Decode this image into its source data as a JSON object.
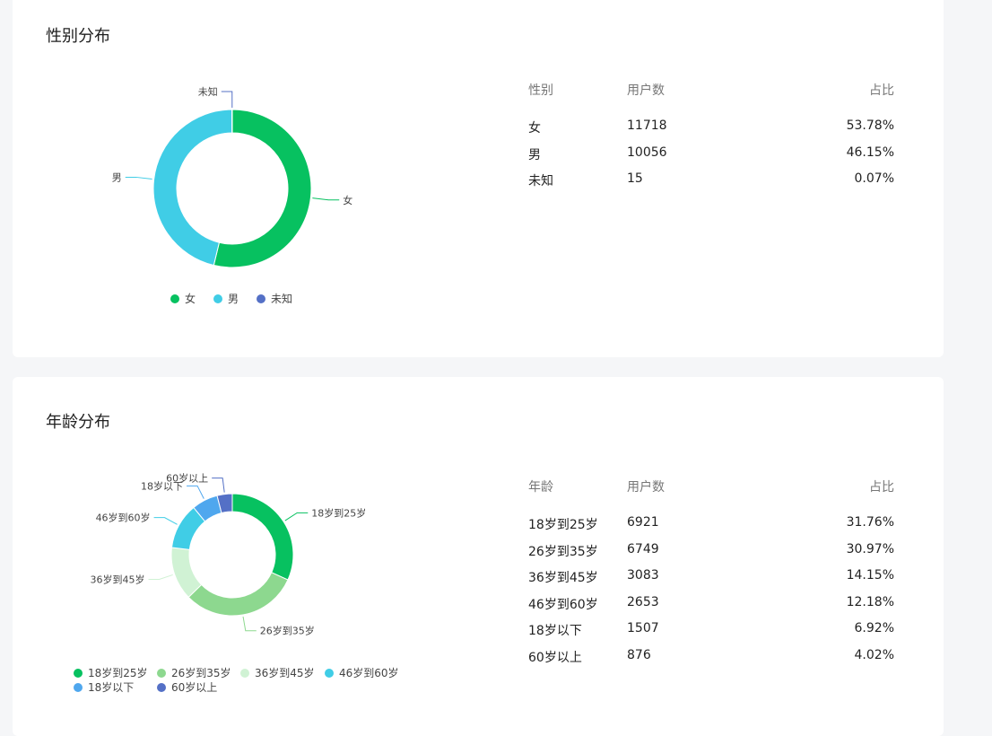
{
  "gender_section": {
    "title": "性别分布",
    "table_headers": [
      "性别",
      "用户数",
      "占比"
    ],
    "rows": [
      {
        "label": "女",
        "count": "11718",
        "pct": "53.78%"
      },
      {
        "label": "男",
        "count": "10056",
        "pct": "46.15%"
      },
      {
        "label": "未知",
        "count": "15",
        "pct": "0.07%"
      }
    ]
  },
  "age_section": {
    "title": "年龄分布",
    "table_headers": [
      "年龄",
      "用户数",
      "占比"
    ],
    "rows": [
      {
        "label": "18岁到25岁",
        "count": "6921",
        "pct": "31.76%"
      },
      {
        "label": "26岁到35岁",
        "count": "6749",
        "pct": "30.97%"
      },
      {
        "label": "36岁到45岁",
        "count": "3083",
        "pct": "14.15%"
      },
      {
        "label": "46岁到60岁",
        "count": "2653",
        "pct": "12.18%"
      },
      {
        "label": "18岁以下",
        "count": "1507",
        "pct": "6.92%"
      },
      {
        "label": "60岁以上",
        "count": "876",
        "pct": "4.02%"
      }
    ]
  },
  "chart_data": [
    {
      "type": "pie",
      "title": "性别分布",
      "categories": [
        "女",
        "男",
        "未知"
      ],
      "values": [
        11718,
        10056,
        15
      ],
      "colors": [
        "#07c160",
        "#40cde6",
        "#5470c6"
      ],
      "legend_position": "bottom"
    },
    {
      "type": "pie",
      "title": "年龄分布",
      "categories": [
        "18岁到25岁",
        "26岁到35岁",
        "36岁到45岁",
        "46岁到60岁",
        "18岁以下",
        "60岁以上"
      ],
      "values": [
        6921,
        6749,
        3083,
        2653,
        1507,
        876
      ],
      "colors": [
        "#07c160",
        "#8dd88f",
        "#d0f2d4",
        "#40cde6",
        "#4fa7ee",
        "#5470c6"
      ],
      "legend_position": "bottom"
    }
  ]
}
